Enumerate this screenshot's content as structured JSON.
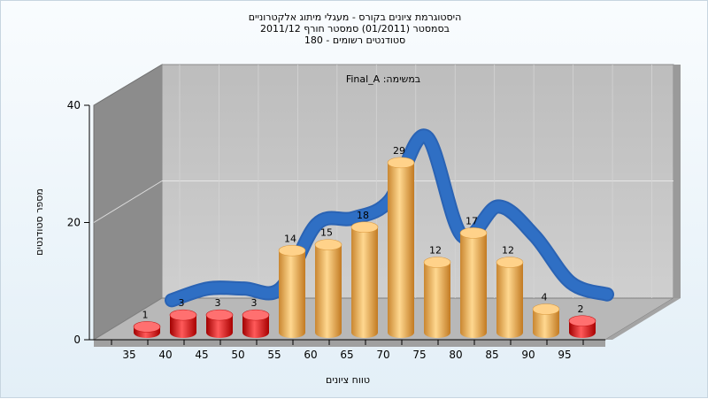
{
  "chart_data": {
    "type": "bar",
    "title_lines": [
      "היסטוגרמת ציונים בקורס - מעגלי מיתוג אלקטרוניים",
      "בסמסטר  (01/2011)  סמסטר חורף 2011/12",
      "סטודנטים רשומים - 180"
    ],
    "subtitle": "Final_A :במשימה",
    "xlabel": "טווח ציונים",
    "ylabel": "מספר סטודנטים",
    "categories": [
      "35",
      "40",
      "45",
      "50",
      "55",
      "60",
      "65",
      "70",
      "75",
      "80",
      "85",
      "90",
      "95"
    ],
    "bars": [
      {
        "category": "35",
        "value": 1
      },
      {
        "category": "40",
        "value": 3
      },
      {
        "category": "45",
        "value": 3
      },
      {
        "category": "50",
        "value": 3
      },
      {
        "category": "55",
        "value": 14
      },
      {
        "category": "60",
        "value": 15
      },
      {
        "category": "65",
        "value": 18
      },
      {
        "category": "70",
        "value": 29
      },
      {
        "category": "75",
        "value": 12
      },
      {
        "category": "80",
        "value": 17
      },
      {
        "category": "85",
        "value": 12
      },
      {
        "category": "90",
        "value": 4
      },
      {
        "category": "95",
        "value": 2
      }
    ],
    "y_ticks": [
      "0",
      "20",
      "40"
    ],
    "ylim": [
      0,
      40
    ],
    "grid": true,
    "colors": {
      "low_bar": "#e01818",
      "bar": "#f0b45a",
      "curve": "#2f6fc4",
      "back_wall": "#c4c4c4",
      "side_wall": "#8a8a8a",
      "floor": "#bdbdbd"
    }
  }
}
